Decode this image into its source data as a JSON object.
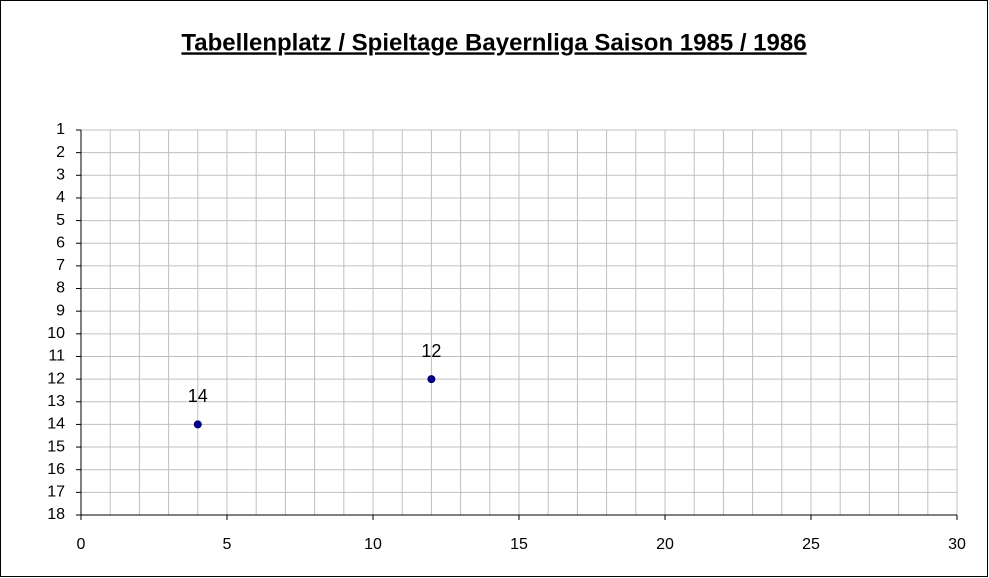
{
  "chart_data": {
    "type": "scatter",
    "title": "Tabellenplatz / Spieltage Bayernliga Saison 1985 / 1986",
    "x": [
      4,
      12
    ],
    "values": [
      14,
      12
    ],
    "color": "#000080",
    "xlim": [
      0,
      30
    ],
    "xticks": [
      0,
      5,
      10,
      15,
      20,
      25,
      30
    ],
    "xminorticks": [
      0,
      1,
      2,
      3,
      4,
      5,
      6,
      7,
      8,
      9,
      10,
      11,
      12,
      13,
      14,
      15,
      16,
      17,
      18,
      19,
      20,
      21,
      22,
      23,
      24,
      25,
      26,
      27,
      28,
      29,
      30
    ],
    "ylim": [
      18,
      1
    ],
    "yticks": [
      1,
      2,
      3,
      4,
      5,
      6,
      7,
      8,
      9,
      10,
      11,
      12,
      13,
      14,
      15,
      16,
      17,
      18
    ],
    "grid": true,
    "data_labels": true
  }
}
